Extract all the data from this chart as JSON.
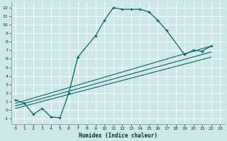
{
  "xlabel": "Humidex (Indice chaleur)",
  "bg_color": "#cce8e8",
  "grid_color": "#ffffff",
  "line_color": "#006666",
  "xlim": [
    -0.5,
    23.5
  ],
  "ylim": [
    -1.6,
    12.6
  ],
  "xticks": [
    0,
    1,
    2,
    3,
    4,
    5,
    6,
    7,
    8,
    9,
    10,
    11,
    12,
    13,
    14,
    15,
    16,
    17,
    18,
    19,
    20,
    21,
    22,
    23
  ],
  "yticks": [
    -1,
    0,
    1,
    2,
    3,
    4,
    5,
    6,
    7,
    8,
    9,
    10,
    11,
    12
  ],
  "main_curve_x": [
    0,
    1,
    2,
    3,
    4,
    5,
    6,
    7,
    9,
    10,
    11,
    12,
    13,
    14,
    15,
    16,
    17,
    19,
    20,
    21,
    22
  ],
  "main_curve_y": [
    1.2,
    0.8,
    -0.5,
    0.2,
    -0.8,
    -0.9,
    2.0,
    6.2,
    8.7,
    10.5,
    12.0,
    11.8,
    11.8,
    11.8,
    11.5,
    10.5,
    9.3,
    6.5,
    7.0,
    6.9,
    7.5
  ],
  "line1_x": [
    0,
    22
  ],
  "line1_y": [
    0.8,
    7.5
  ],
  "line2_x": [
    0,
    22
  ],
  "line2_y": [
    0.5,
    6.8
  ],
  "line3_x": [
    0,
    22
  ],
  "line3_y": [
    0.2,
    6.2
  ]
}
